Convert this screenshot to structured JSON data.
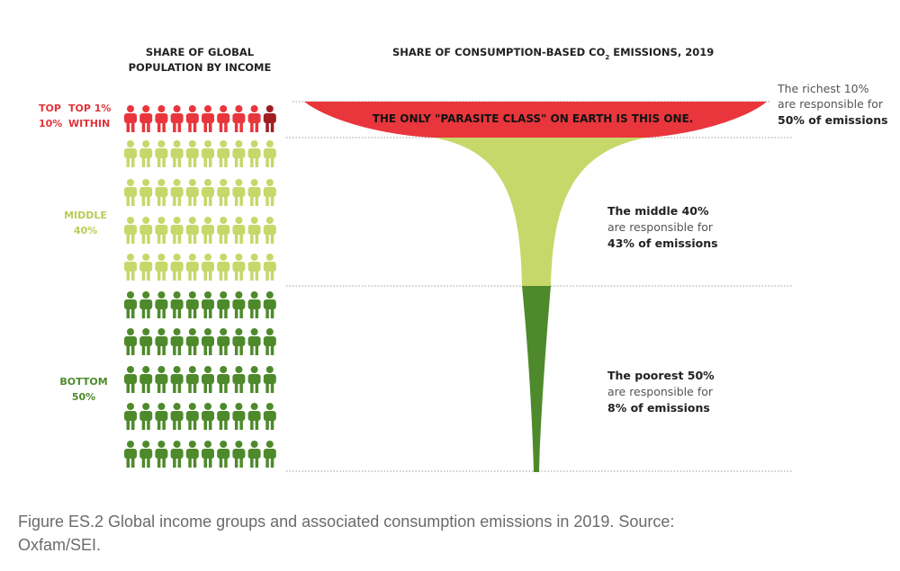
{
  "header": {
    "population": [
      "SHARE OF GLOBAL",
      "POPULATION BY INCOME"
    ],
    "emissions": {
      "main": "SHARE OF CONSUMPTION-BASED CO",
      "subscript": "2",
      "rest": " EMISSIONS, 2019"
    }
  },
  "groups": {
    "top": [
      "TOP",
      "10%"
    ],
    "top1": [
      "TOP 1%",
      "WITHIN"
    ],
    "middle": [
      "MIDDLE",
      "40%"
    ],
    "bottom": [
      "BOTTOM",
      "50%"
    ]
  },
  "annotations": {
    "richest": [
      "The richest 10%",
      "are responsible for",
      "50% of emissions"
    ],
    "middle": [
      "The middle 40%",
      "are responsible for",
      "43% of emissions"
    ],
    "poorest": [
      "The poorest 50%",
      "are responsible for",
      "8% of emissions"
    ]
  },
  "overlay": "THE ONLY \"PARASITE CLASS\" ON EARTH IS THIS ONE.",
  "caption": [
    "Figure ES.2 Global income groups and associated consumption emissions in 2019. Source:",
    "Oxfam/SEI."
  ]
}
